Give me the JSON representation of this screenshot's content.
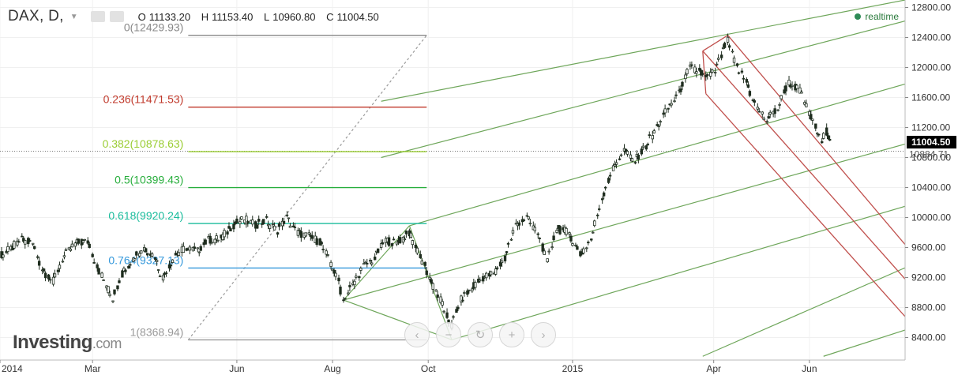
{
  "header": {
    "symbol": "DAX, D,",
    "open_label": "O",
    "open": "11133.20",
    "high_label": "H",
    "high": "11153.40",
    "low_label": "L",
    "low": "10960.80",
    "close_label": "C",
    "close": "11004.50",
    "realtime_label": "realtime"
  },
  "logo": {
    "main": "Investing",
    "suffix": ".com"
  },
  "icons": {
    "chevron_left": "‹",
    "minus": "−",
    "reset": "↻",
    "plus": "+",
    "chevron_right": "›"
  },
  "colors": {
    "candle": "#1f2d1f",
    "pitchfork_green": "#6ea65a",
    "pitchfork_red": "#c0504d",
    "fib_0": "#888888",
    "fib_236": "#c0392b",
    "fib_382": "#9acd32",
    "fib_5": "#27ae3c",
    "fib_618": "#1abc9c",
    "fib_764": "#3498db",
    "fib_1": "#999999",
    "price_tag_bg": "#000000",
    "realtime_dot": "#2e8b57"
  },
  "chart_data": {
    "type": "candlestick",
    "instrument": "DAX",
    "timeframe": "D",
    "x_range": [
      "2014-01-01",
      "2015-06-30"
    ],
    "y_range": [
      8100,
      12900
    ],
    "y_ticks": [
      8400,
      8800,
      9200,
      9600,
      10000,
      10400,
      10800,
      11200,
      11600,
      12000,
      12400,
      12800
    ],
    "y_tick_labels": [
      "8400.00",
      "8800.00",
      "9200.00",
      "9600.00",
      "10000.00",
      "10400.00",
      "10800.00",
      "11200.00",
      "11600.00",
      "12000.00",
      "12400.00",
      "12800.00"
    ],
    "x_ticks": [
      {
        "date": "2014-01-01",
        "label": "2014"
      },
      {
        "date": "2014-03-01",
        "label": "Mar"
      },
      {
        "date": "2014-06-01",
        "label": "Jun"
      },
      {
        "date": "2014-08-01",
        "label": "Aug"
      },
      {
        "date": "2014-10-01",
        "label": "Oct"
      },
      {
        "date": "2015-01-01",
        "label": "2015"
      },
      {
        "date": "2015-04-01",
        "label": "Apr"
      },
      {
        "date": "2015-06-01",
        "label": "Jun"
      }
    ],
    "price_line": {
      "value": 10884.71,
      "label": "10884.71"
    },
    "last_price": {
      "value": 11004.5,
      "label": "11004.50"
    },
    "fib_retracement": {
      "anchor_high": {
        "date": "2015-04-10",
        "value": 12429.93
      },
      "anchor_low": {
        "date": "2014-10-16",
        "value": 8368.94
      },
      "levels": [
        {
          "ratio": 0,
          "value": 12429.93,
          "label": "0(12429.93)",
          "color": "#888888"
        },
        {
          "ratio": 0.236,
          "value": 11471.53,
          "label": "0.236(11471.53)",
          "color": "#c0392b"
        },
        {
          "ratio": 0.382,
          "value": 10878.63,
          "label": "0.382(10878.63)",
          "color": "#9acd32"
        },
        {
          "ratio": 0.5,
          "value": 10399.43,
          "label": "0.5(10399.43)",
          "color": "#27ae3c"
        },
        {
          "ratio": 0.618,
          "value": 9920.24,
          "label": "0.618(9920.24)",
          "color": "#1abc9c"
        },
        {
          "ratio": 0.764,
          "value": 9327.13,
          "label": "0.764(9327.13)",
          "color": "#3498db"
        },
        {
          "ratio": 1,
          "value": 8368.94,
          "label": "1(8368.94)",
          "color": "#999999"
        }
      ],
      "line_x_range": [
        "2014-05-01",
        "2014-09-30"
      ],
      "trend_line": [
        {
          "date": "2014-05-01",
          "value": 8368.94
        },
        {
          "date": "2014-09-30",
          "value": 12429.93
        }
      ]
    },
    "green_pitchfork": {
      "pivot": {
        "date": "2014-10-16",
        "value": 8370
      },
      "anchor_a": {
        "date": "2014-08-08",
        "value": 8900
      },
      "anchor_b": {
        "date": "2014-09-19",
        "value": 9890
      },
      "parallels": [
        [
          {
            "date": "2014-09-01",
            "value": 11550
          },
          {
            "date": "2015-08-01",
            "value": 12900
          }
        ],
        [
          {
            "date": "2014-09-01",
            "value": 10800
          },
          {
            "date": "2015-08-01",
            "value": 12620
          }
        ],
        [
          {
            "date": "2014-09-19",
            "value": 9890
          },
          {
            "date": "2015-08-01",
            "value": 11780
          }
        ],
        [
          {
            "date": "2014-08-08",
            "value": 8900
          },
          {
            "date": "2015-08-01",
            "value": 10980
          }
        ],
        [
          {
            "date": "2014-10-16",
            "value": 8370
          },
          {
            "date": "2015-08-01",
            "value": 10150
          }
        ],
        [
          {
            "date": "2015-03-25",
            "value": 8150
          },
          {
            "date": "2015-08-01",
            "value": 9330
          }
        ],
        [
          {
            "date": "2015-06-10",
            "value": 8150
          },
          {
            "date": "2015-08-01",
            "value": 8500
          }
        ]
      ]
    },
    "red_pitchfork": {
      "pivot": {
        "date": "2015-04-10",
        "value": 12430
      },
      "parallels": [
        [
          {
            "date": "2015-04-10",
            "value": 12430
          },
          {
            "date": "2015-08-01",
            "value": 9640
          }
        ],
        [
          {
            "date": "2015-03-25",
            "value": 12220
          },
          {
            "date": "2015-08-01",
            "value": 9180
          }
        ],
        [
          {
            "date": "2015-03-27",
            "value": 11650
          },
          {
            "date": "2015-08-01",
            "value": 8680
          }
        ]
      ],
      "handle": [
        {
          "date": "2015-03-27",
          "value": 11650
        },
        {
          "date": "2015-03-25",
          "value": 12220
        }
      ]
    },
    "series": [
      {
        "date": "2014-01-02",
        "value": 9500
      },
      {
        "date": "2014-01-08",
        "value": 9580
      },
      {
        "date": "2014-01-15",
        "value": 9700
      },
      {
        "date": "2014-01-22",
        "value": 9650
      },
      {
        "date": "2014-01-28",
        "value": 9320
      },
      {
        "date": "2014-02-04",
        "value": 9150
      },
      {
        "date": "2014-02-10",
        "value": 9450
      },
      {
        "date": "2014-02-18",
        "value": 9650
      },
      {
        "date": "2014-02-26",
        "value": 9680
      },
      {
        "date": "2014-03-04",
        "value": 9350
      },
      {
        "date": "2014-03-10",
        "value": 9100
      },
      {
        "date": "2014-03-14",
        "value": 8920
      },
      {
        "date": "2014-03-20",
        "value": 9250
      },
      {
        "date": "2014-03-27",
        "value": 9450
      },
      {
        "date": "2014-04-03",
        "value": 9600
      },
      {
        "date": "2014-04-10",
        "value": 9480
      },
      {
        "date": "2014-04-15",
        "value": 9200
      },
      {
        "date": "2014-04-23",
        "value": 9500
      },
      {
        "date": "2014-04-30",
        "value": 9600
      },
      {
        "date": "2014-05-07",
        "value": 9550
      },
      {
        "date": "2014-05-14",
        "value": 9700
      },
      {
        "date": "2014-05-22",
        "value": 9720
      },
      {
        "date": "2014-05-30",
        "value": 9900
      },
      {
        "date": "2014-06-06",
        "value": 9980
      },
      {
        "date": "2014-06-13",
        "value": 9900
      },
      {
        "date": "2014-06-20",
        "value": 9960
      },
      {
        "date": "2014-06-27",
        "value": 9830
      },
      {
        "date": "2014-07-03",
        "value": 10000
      },
      {
        "date": "2014-07-10",
        "value": 9800
      },
      {
        "date": "2014-07-17",
        "value": 9750
      },
      {
        "date": "2014-07-24",
        "value": 9680
      },
      {
        "date": "2014-07-31",
        "value": 9400
      },
      {
        "date": "2014-08-05",
        "value": 9150
      },
      {
        "date": "2014-08-08",
        "value": 8900
      },
      {
        "date": "2014-08-14",
        "value": 9100
      },
      {
        "date": "2014-08-21",
        "value": 9350
      },
      {
        "date": "2014-08-28",
        "value": 9450
      },
      {
        "date": "2014-09-04",
        "value": 9700
      },
      {
        "date": "2014-09-11",
        "value": 9650
      },
      {
        "date": "2014-09-19",
        "value": 9800
      },
      {
        "date": "2014-09-26",
        "value": 9500
      },
      {
        "date": "2014-10-02",
        "value": 9200
      },
      {
        "date": "2014-10-09",
        "value": 8900
      },
      {
        "date": "2014-10-16",
        "value": 8550
      },
      {
        "date": "2014-10-22",
        "value": 8900
      },
      {
        "date": "2014-10-29",
        "value": 9050
      },
      {
        "date": "2014-11-05",
        "value": 9200
      },
      {
        "date": "2014-11-12",
        "value": 9250
      },
      {
        "date": "2014-11-19",
        "value": 9450
      },
      {
        "date": "2014-11-26",
        "value": 9900
      },
      {
        "date": "2014-12-03",
        "value": 10000
      },
      {
        "date": "2014-12-10",
        "value": 9800
      },
      {
        "date": "2014-12-16",
        "value": 9400
      },
      {
        "date": "2014-12-22",
        "value": 9850
      },
      {
        "date": "2014-12-30",
        "value": 9800
      },
      {
        "date": "2015-01-06",
        "value": 9500
      },
      {
        "date": "2015-01-13",
        "value": 9700
      },
      {
        "date": "2015-01-20",
        "value": 10250
      },
      {
        "date": "2015-01-27",
        "value": 10650
      },
      {
        "date": "2015-02-03",
        "value": 10900
      },
      {
        "date": "2015-02-10",
        "value": 10750
      },
      {
        "date": "2015-02-17",
        "value": 10950
      },
      {
        "date": "2015-02-24",
        "value": 11200
      },
      {
        "date": "2015-03-03",
        "value": 11450
      },
      {
        "date": "2015-03-10",
        "value": 11650
      },
      {
        "date": "2015-03-17",
        "value": 12000
      },
      {
        "date": "2015-03-23",
        "value": 11950
      },
      {
        "date": "2015-03-27",
        "value": 11850
      },
      {
        "date": "2015-04-02",
        "value": 11950
      },
      {
        "date": "2015-04-10",
        "value": 12350
      },
      {
        "date": "2015-04-16",
        "value": 12000
      },
      {
        "date": "2015-04-22",
        "value": 11800
      },
      {
        "date": "2015-04-29",
        "value": 11450
      },
      {
        "date": "2015-05-05",
        "value": 11300
      },
      {
        "date": "2015-05-12",
        "value": 11450
      },
      {
        "date": "2015-05-19",
        "value": 11800
      },
      {
        "date": "2015-05-26",
        "value": 11700
      },
      {
        "date": "2015-06-01",
        "value": 11400
      },
      {
        "date": "2015-06-05",
        "value": 11200
      },
      {
        "date": "2015-06-09",
        "value": 11000
      },
      {
        "date": "2015-06-12",
        "value": 11150
      },
      {
        "date": "2015-06-16",
        "value": 11004.5
      }
    ]
  }
}
